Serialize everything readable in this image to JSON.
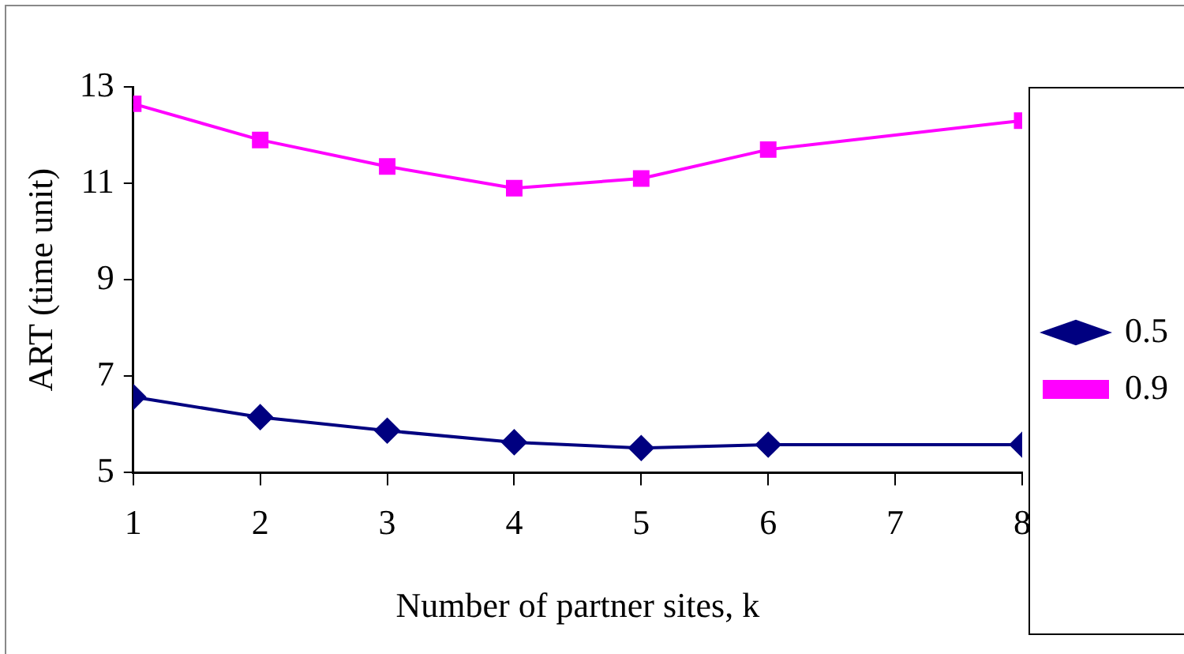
{
  "chart_data": {
    "type": "line",
    "xlabel": "Number of partner sites, k",
    "ylabel": "ART (time unit)",
    "x": [
      1,
      2,
      3,
      4,
      5,
      6,
      8
    ],
    "series": [
      {
        "name": "0.5",
        "color": "#000080",
        "marker": "diamond",
        "values": [
          6.57,
          6.15,
          5.87,
          5.63,
          5.51,
          5.58,
          5.58
        ]
      },
      {
        "name": "0.9",
        "color": "#ff00ff",
        "marker": "square",
        "values": [
          12.65,
          11.9,
          11.35,
          10.9,
          11.1,
          11.7,
          12.3
        ]
      }
    ],
    "xlim": [
      1,
      8
    ],
    "xticks": [
      1,
      2,
      3,
      4,
      5,
      6,
      7,
      8
    ],
    "ylim": [
      5,
      13
    ],
    "yticks": [
      5,
      7,
      9,
      11,
      13
    ],
    "grid": false,
    "legend": "right"
  }
}
